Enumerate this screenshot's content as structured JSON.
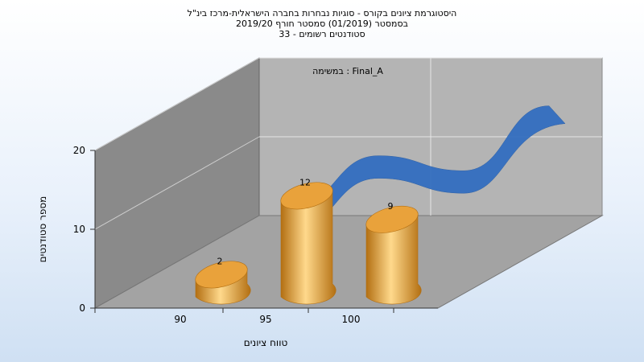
{
  "titles": {
    "line1": "היסטוגרמת ציונים בקורס - סוגיות נבחרות בחברה הישראלית-מרכז בינ\"ל",
    "line2": "בסמסטר  (01/2019)  סמסטר חורף 2019/20",
    "line3": "סטודנטים רשומים - 33"
  },
  "colors": {
    "bar": "#e9a23b",
    "bar_light": "#ffd98c",
    "bar_dark": "#b36f12",
    "ribbon": "#2f6cc0",
    "back_wall": "#b4b4b4",
    "side_wall": "#8a8a8a",
    "floor": "#a3a3a3"
  },
  "chart_data": {
    "type": "bar",
    "legend_text": "Final_A : במשימה",
    "xlabel": "טווח ציונים",
    "ylabel": "מספר סטודנטים",
    "x_ticks": [
      "90",
      "95",
      "100"
    ],
    "y_ticks": [
      "0",
      "10",
      "20"
    ],
    "ylim": [
      0,
      25
    ],
    "grid": true,
    "series": [
      {
        "type": "bar",
        "categories": [
          "90",
          "95",
          "100"
        ],
        "values": [
          2,
          12,
          9
        ]
      },
      {
        "type": "line",
        "x": [
          "90",
          "95",
          "100",
          "105"
        ],
        "values": [
          2,
          12,
          9,
          22
        ]
      }
    ]
  }
}
